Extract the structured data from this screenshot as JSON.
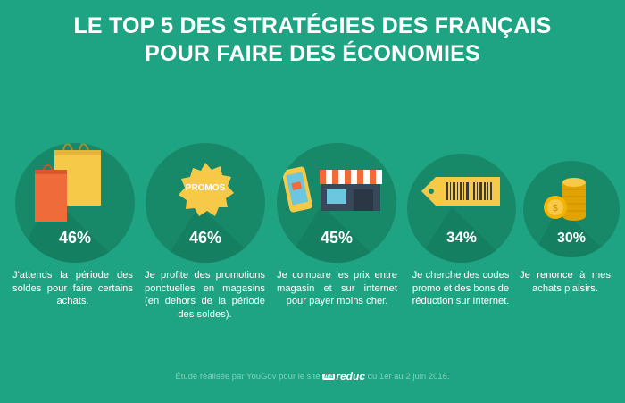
{
  "title": {
    "line1": "LE TOP 5 DES STRATÉGIES DES FRANÇAIS",
    "line2": "POUR FAIRE DES ÉCONOMIES"
  },
  "items": [
    {
      "icon": "shopping-bags-icon",
      "percent": "46%",
      "text": "J'attends la période des soldes pour faire certains achats."
    },
    {
      "icon": "promo-badge-icon",
      "badge": "PROMOS",
      "percent": "46%",
      "text": "Je profite des promotions ponctuelles en magasins (en dehors de la période des soldes)."
    },
    {
      "icon": "phone-and-store-icon",
      "percent": "45%",
      "text": "Je compare les prix entre magasin et sur internet pour payer moins cher."
    },
    {
      "icon": "barcode-tag-icon",
      "percent": "34%",
      "text": "Je cherche des codes promo et des bons de réduction sur Internet."
    },
    {
      "icon": "gold-coins-icon",
      "percent": "30%",
      "text": "Je renonce à mes achats plaisirs."
    }
  ],
  "footer": {
    "before": "Étude réalisée par YouGov pour le site",
    "logo_ma": "ma",
    "logo_reduc": "reduc",
    "after": "du 1er au 2 juin 2016."
  },
  "colors": {
    "background": "#1ea483",
    "circle": "#178868",
    "bag_orange": "#ef6b3a",
    "bag_yellow": "#f7c948",
    "coin_gold": "#f4b400"
  }
}
